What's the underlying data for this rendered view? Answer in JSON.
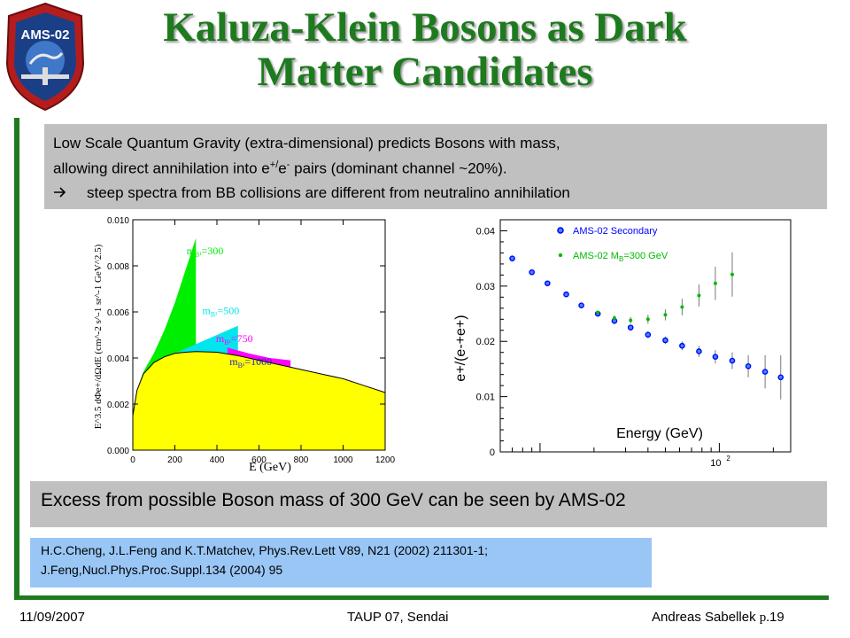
{
  "title_line1": "Kaluza-Klein Bosons as Dark",
  "title_line2": "Matter Candidates",
  "logo": {
    "text": "AMS-02"
  },
  "intro": {
    "line1": "Low Scale Quantum Gravity (extra-dimensional) predicts Bosons with mass,",
    "line2_a": "allowing direct annihilation into e",
    "line2_sup": "+/",
    "line2_b": "e",
    "line2_sup2": "-",
    "line2_c": " pairs (dominant channel ~20%).",
    "bullet_icon": "arrow-right-icon",
    "line3": "steep spectra from BB collisions are different from neutralino annihilation"
  },
  "excess_text": "Excess from possible Boson mass of 300 GeV can be seen by AMS-02",
  "references": {
    "line1": "H.C.Cheng, J.L.Feng and K.T.Matchev, Phys.Rev.Lett V89, N21 (2002) 211301-1;",
    "line2": "J.Feng,Nucl.Phys.Proc.Suppl.134 (2004) 95"
  },
  "footer": {
    "date": "11/09/2007",
    "conference": "TAUP 07, Sendai",
    "author": "Andreas Sabellek",
    "page_prefix": "p.",
    "page_number": "19"
  },
  "chart_data": [
    {
      "type": "area",
      "xlabel": "E (GeV)",
      "ylabel": "E^3.5 dΦe+/dΩdE (cm^-2 s^-1 sr^-1 GeV^2.5)",
      "xlim": [
        0,
        1200
      ],
      "ylim": [
        0,
        0.01
      ],
      "xticks": [
        "0",
        "200",
        "400",
        "600",
        "800",
        "1000",
        "1200"
      ],
      "yticks": [
        "0.000",
        "0.002",
        "0.004",
        "0.006",
        "0.008",
        "0.010"
      ],
      "base_curve": {
        "name": "background",
        "color": "#ffff00",
        "x": [
          0,
          20,
          50,
          100,
          150,
          200,
          250,
          300,
          400,
          500,
          600,
          700,
          800,
          900,
          1000,
          1100,
          1200
        ],
        "y": [
          0.0015,
          0.0026,
          0.0033,
          0.0038,
          0.00405,
          0.0042,
          0.00425,
          0.00428,
          0.00425,
          0.0041,
          0.0039,
          0.0037,
          0.0035,
          0.0033,
          0.0031,
          0.0028,
          0.0025
        ]
      },
      "series": [
        {
          "name": "mB1=300",
          "label": "m",
          "sub": "B¹",
          "value": "=300",
          "color": "#00ee00",
          "x": [
            20,
            50,
            100,
            150,
            200,
            250,
            300
          ],
          "y": [
            0.0026,
            0.0034,
            0.0042,
            0.0052,
            0.0064,
            0.0078,
            0.0092
          ]
        },
        {
          "name": "mB1=500",
          "label": "m",
          "sub": "B¹",
          "value": "=500",
          "color": "#00e5ee",
          "x": [
            200,
            300,
            400,
            500
          ],
          "y": [
            0.0042,
            0.0046,
            0.005,
            0.0054
          ]
        },
        {
          "name": "mB1=750",
          "label": "m",
          "sub": "B¹",
          "value": "=750",
          "color": "#ff00ff",
          "x": [
            450,
            550,
            650,
            750
          ],
          "y": [
            0.00445,
            0.0042,
            0.004,
            0.0039
          ]
        },
        {
          "name": "mB1=1000",
          "label": "m",
          "sub": "B¹",
          "value": "=1000",
          "color": "#2222bb",
          "x": [
            600,
            700,
            800,
            900,
            1000
          ],
          "y": [
            0.00395,
            0.0036,
            0.0034,
            0.0032,
            0.0031
          ]
        }
      ]
    },
    {
      "type": "scatter",
      "xlabel": "Energy (GeV)",
      "ylabel": "e+/(e-+e+)",
      "xscale": "log",
      "xlim": [
        6,
        250
      ],
      "ylim": [
        0,
        0.042
      ],
      "xtick_label": "10",
      "xtick_label_sup": "2",
      "yticks": [
        "0",
        "0.01",
        "0.02",
        "0.03",
        "0.04"
      ],
      "legend": "top-right",
      "series": [
        {
          "name": "AMS-02 Secondary",
          "color": "#0000ff",
          "marker": "circle-open",
          "x": [
            7,
            9,
            11,
            14,
            17,
            21,
            26,
            32,
            40,
            50,
            62,
            77,
            95,
            118,
            145,
            180,
            220
          ],
          "y": [
            0.035,
            0.0325,
            0.0305,
            0.0285,
            0.0265,
            0.025,
            0.0237,
            0.0225,
            0.0212,
            0.0202,
            0.0192,
            0.0182,
            0.0172,
            0.0165,
            0.0155,
            0.0145,
            0.0135
          ],
          "err": [
            0.0003,
            0.0003,
            0.0003,
            0.0003,
            0.0003,
            0.0004,
            0.0004,
            0.0005,
            0.0006,
            0.0007,
            0.0008,
            0.001,
            0.0012,
            0.0015,
            0.002,
            0.003,
            0.004
          ]
        },
        {
          "name": "AMS-02 M",
          "sub": "B",
          "suffix": "=300 GeV",
          "color": "#00bb00",
          "marker": "circle",
          "x": [
            21,
            26,
            32,
            40,
            50,
            62,
            77,
            95,
            118
          ],
          "y": [
            0.0252,
            0.0242,
            0.0238,
            0.024,
            0.0248,
            0.0262,
            0.0283,
            0.0305,
            0.0321
          ],
          "err": [
            0.0004,
            0.0005,
            0.0006,
            0.0008,
            0.001,
            0.0015,
            0.002,
            0.003,
            0.004
          ]
        }
      ]
    }
  ]
}
